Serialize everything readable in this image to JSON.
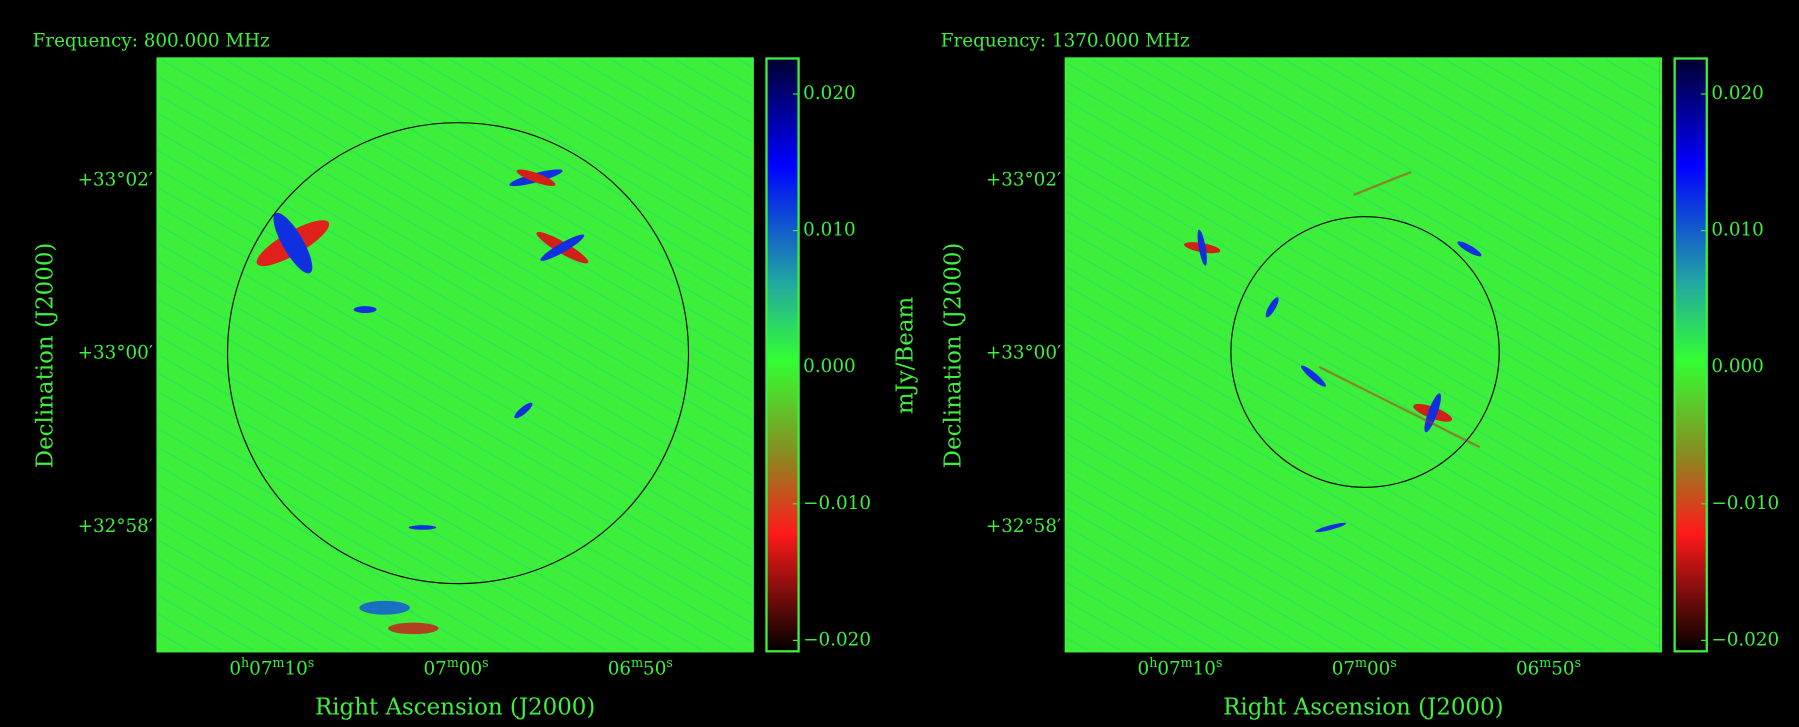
{
  "chart_data": [
    {
      "type": "image",
      "title": "Frequency: 800.000 MHz",
      "x_label": "Right Ascension (J2000)",
      "y_label": "Declination (J2000)",
      "colorbar_label": "mJy/Beam",
      "xlim": [
        436.2,
        403.9
      ],
      "xticks": [
        {
          "value": 430,
          "label": "0h07m10s"
        },
        {
          "value": 420,
          "label": "07m00s"
        },
        {
          "value": 410,
          "label": "06m50s"
        }
      ],
      "ylim": [
        32.9428,
        33.0567
      ],
      "yticks": [
        {
          "value": 33.0333,
          "label": "+33°02′"
        },
        {
          "value": 33,
          "label": "+33°00′"
        },
        {
          "value": 32.9667,
          "label": "+32°58′"
        }
      ],
      "clim": [
        -0.0208,
        0.0226
      ],
      "cticks": [
        {
          "value": 0.02,
          "label": "0.020"
        },
        {
          "value": 0.01,
          "label": "0.010"
        },
        {
          "value": 0,
          "label": "0.000"
        },
        {
          "value": -0.01,
          "label": "−0.010"
        },
        {
          "value": -0.02,
          "label": "−0.020"
        }
      ]
    },
    {
      "type": "image",
      "title": "Frequency: 1370.000 MHz",
      "x_label": "Right Ascension (J2000)",
      "y_label": "Declination (J2000)",
      "xlim": [
        436.2,
        403.9
      ],
      "xticks": [
        {
          "value": 430,
          "label": "0h07m10s"
        },
        {
          "value": 420,
          "label": "07m00s"
        },
        {
          "value": 410,
          "label": "06m50s"
        }
      ],
      "ylim": [
        32.9428,
        33.0567
      ],
      "yticks": [
        {
          "value": 33.0333,
          "label": "+33°02′"
        },
        {
          "value": 33,
          "label": "+33°00′"
        },
        {
          "value": 32.9667,
          "label": "+32°58′"
        }
      ],
      "clim": [
        -0.0208,
        0.0226
      ],
      "cticks": [
        {
          "value": 0.02,
          "label": "0.020"
        },
        {
          "value": 0.01,
          "label": "0.010"
        },
        {
          "value": 0,
          "label": "0.000"
        },
        {
          "value": -0.01,
          "label": "−0.010"
        },
        {
          "value": -0.02,
          "label": "−0.020"
        }
      ]
    }
  ]
}
